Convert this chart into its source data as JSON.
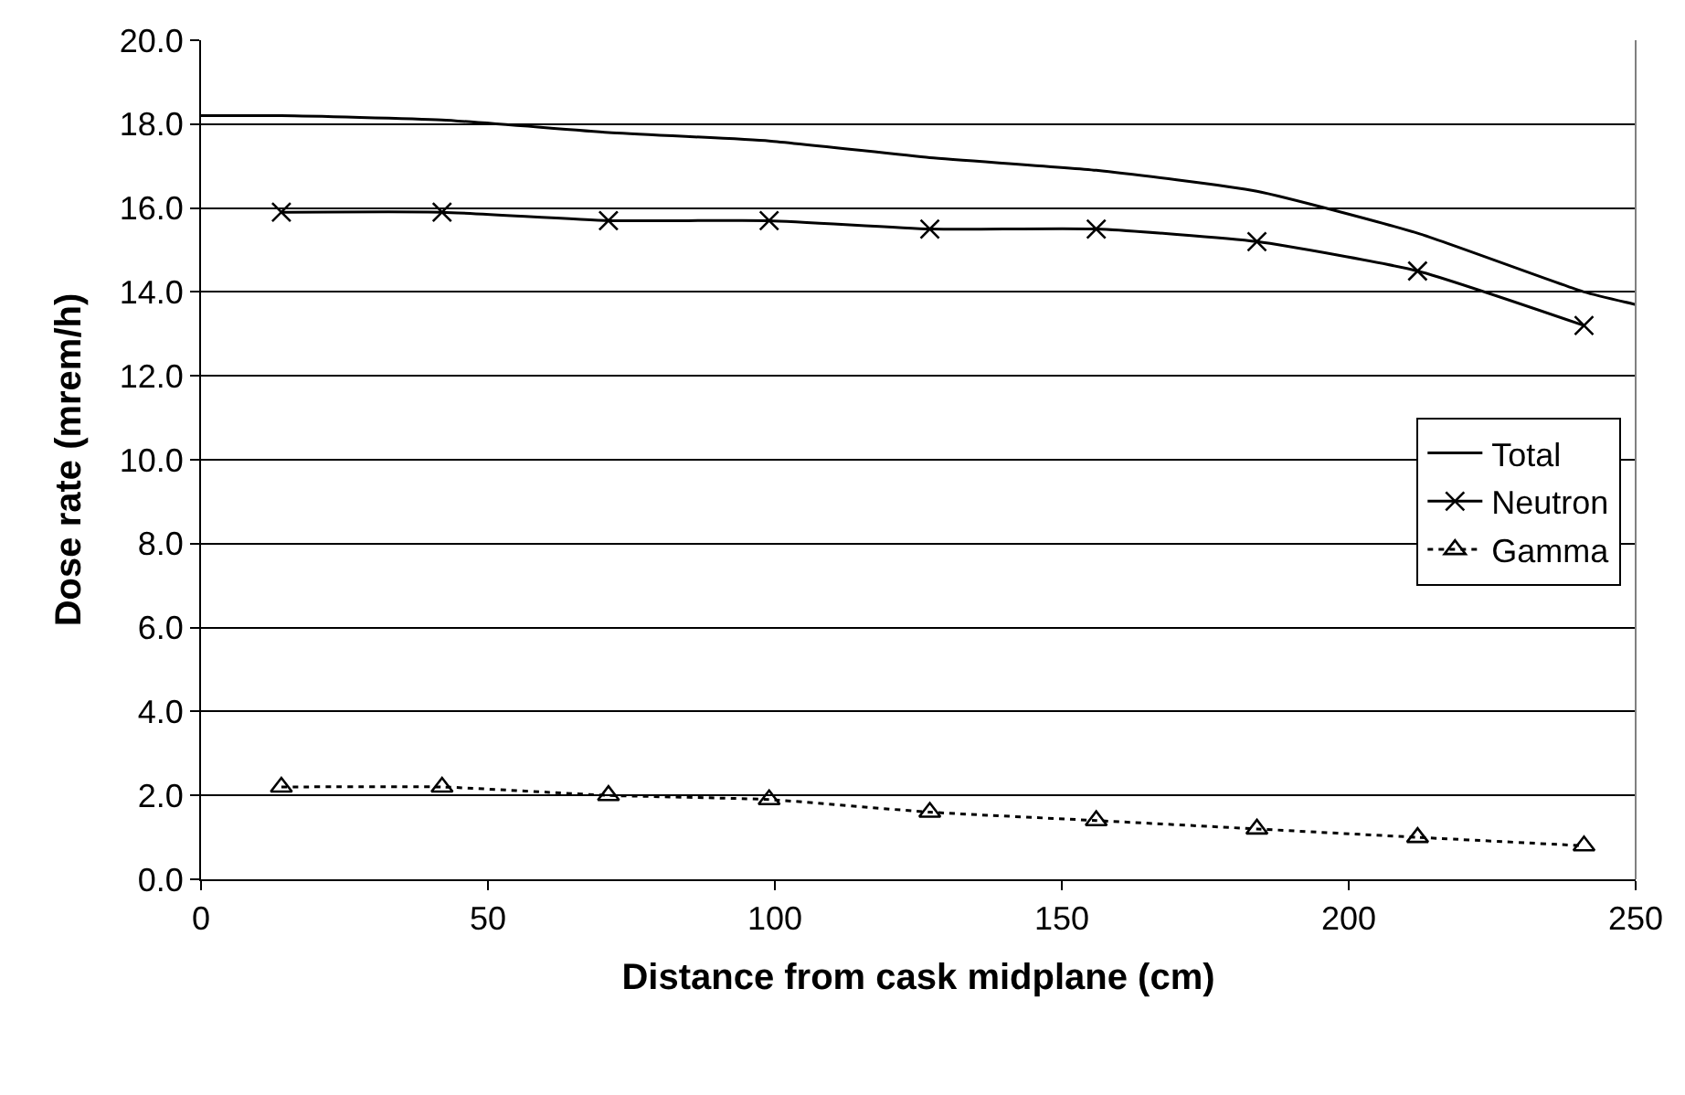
{
  "chart_data": {
    "type": "line",
    "xlabel": "Distance from cask midplane (cm)",
    "ylabel": "Dose rate (mrem/h)",
    "xlim": [
      0,
      250
    ],
    "xticks": [
      0,
      50,
      100,
      150,
      200,
      250
    ],
    "ylim": [
      0,
      20
    ],
    "yticks": [
      {
        "value": 0,
        "label": "0.0"
      },
      {
        "value": 2,
        "label": "2.0"
      },
      {
        "value": 4,
        "label": "4.0"
      },
      {
        "value": 6,
        "label": "6.0"
      },
      {
        "value": 8,
        "label": "8.0"
      },
      {
        "value": 10,
        "label": "10.0"
      },
      {
        "value": 12,
        "label": "12.0"
      },
      {
        "value": 14,
        "label": "14.0"
      },
      {
        "value": 16,
        "label": "16.0"
      },
      {
        "value": 18,
        "label": "18.0"
      },
      {
        "value": 20,
        "label": "20.0"
      }
    ],
    "grid": "y",
    "legend": "right",
    "series": [
      {
        "name": "Total",
        "color": "#000000",
        "marker": "none",
        "line_style": "solid",
        "x": [
          0,
          14,
          42,
          71,
          99,
          127,
          156,
          184,
          212,
          241,
          250
        ],
        "values": [
          18.2,
          18.2,
          18.1,
          17.8,
          17.6,
          17.2,
          16.9,
          16.4,
          15.4,
          14.0,
          13.7
        ]
      },
      {
        "name": "Neutron",
        "color": "#000000",
        "marker": "cross",
        "line_style": "solid",
        "x": [
          14,
          42,
          71,
          99,
          127,
          156,
          184,
          212,
          241
        ],
        "values": [
          15.9,
          15.9,
          15.7,
          15.7,
          15.5,
          15.5,
          15.2,
          14.5,
          13.2
        ]
      },
      {
        "name": "Gamma",
        "color": "#000000",
        "marker": "triangle",
        "line_style": "dotted",
        "x": [
          14,
          42,
          71,
          99,
          127,
          156,
          184,
          212,
          241
        ],
        "values": [
          2.2,
          2.2,
          2.0,
          1.9,
          1.6,
          1.4,
          1.2,
          1.0,
          0.8
        ]
      }
    ]
  }
}
